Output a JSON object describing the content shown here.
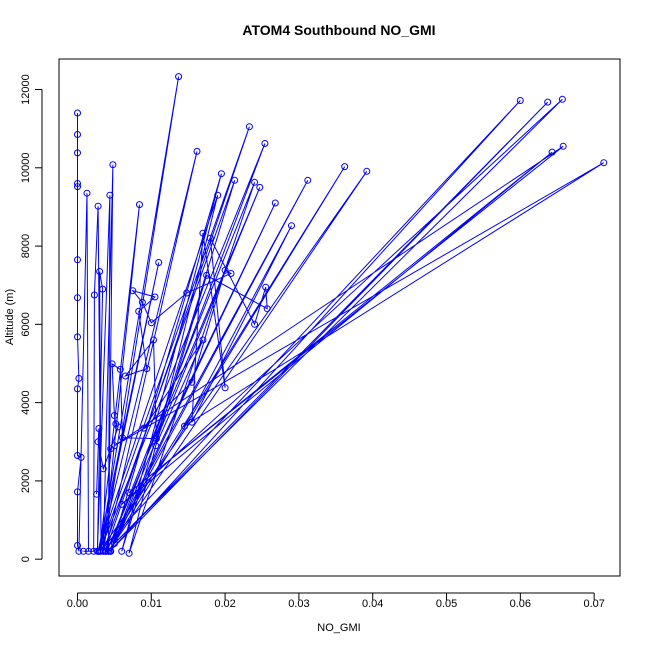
{
  "chart_data": {
    "type": "line",
    "title": "ATOM4 Southbound NO_GMI",
    "xlabel": "NO_GMI",
    "ylabel": "Altitude (m)",
    "xlim": [
      -0.0025,
      0.0735
    ],
    "ylim": [
      -430,
      12780
    ],
    "xticks": [
      0.0,
      0.01,
      0.02,
      0.03,
      0.04,
      0.05,
      0.06,
      0.07
    ],
    "xtick_labels": [
      "0.00",
      "0.01",
      "0.02",
      "0.03",
      "0.04",
      "0.05",
      "0.06",
      "0.07"
    ],
    "yticks": [
      0,
      2000,
      4000,
      6000,
      8000,
      10000,
      12000
    ],
    "ytick_labels": [
      "0",
      "2000",
      "4000",
      "6000",
      "8000",
      "10000",
      "12000"
    ],
    "grid": false,
    "legend": "none",
    "style": "lines and open circles",
    "color": "#0000ff",
    "series": [
      {
        "points": [
          [
            0.0,
            11400
          ],
          [
            0.0,
            10850
          ],
          [
            0.0,
            10380
          ],
          [
            0.0,
            9600
          ],
          [
            0.0,
            9520
          ],
          [
            0.0,
            7650
          ],
          [
            0.0,
            6680
          ],
          [
            0.0,
            5680
          ],
          [
            0.0002,
            4620
          ],
          [
            0.0,
            4350
          ],
          [
            0.0,
            2650
          ],
          [
            0.0005,
            2600
          ],
          [
            0.0,
            1720
          ],
          [
            0.0,
            350
          ],
          [
            0.0002,
            200
          ],
          [
            0.0013,
            9350
          ],
          [
            0.0015,
            200
          ],
          [
            0.0008,
            200
          ],
          [
            0.0022,
            200
          ],
          [
            0.0023,
            6750
          ],
          [
            0.0028,
            9020
          ],
          [
            0.0032,
            200
          ],
          [
            0.003,
            7350
          ],
          [
            0.0034,
            6900
          ],
          [
            0.0027,
            200
          ],
          [
            0.0044,
            9300
          ],
          [
            0.0042,
            200
          ],
          [
            0.0048,
            10080
          ],
          [
            0.0035,
            200
          ],
          [
            0.0137,
            12330
          ],
          [
            0.003,
            200
          ],
          [
            0.0162,
            10420
          ],
          [
            0.0038,
            200
          ],
          [
            0.0233,
            11050
          ],
          [
            0.003,
            200
          ],
          [
            0.0254,
            10620
          ],
          [
            0.0045,
            200
          ],
          [
            0.0195,
            9850
          ],
          [
            0.006,
            200
          ],
          [
            0.0213,
            9680
          ],
          [
            0.0035,
            200
          ],
          [
            0.0084,
            9060
          ],
          [
            0.003,
            200
          ],
          [
            0.011,
            7580
          ],
          [
            0.0028,
            200
          ],
          [
            0.019,
            9300
          ],
          [
            0.007,
            150
          ],
          [
            0.024,
            9630
          ],
          [
            0.004,
            200
          ],
          [
            0.0247,
            9500
          ],
          [
            0.0045,
            200
          ],
          [
            0.0268,
            9100
          ],
          [
            0.005,
            500
          ],
          [
            0.0312,
            9680
          ],
          [
            0.0038,
            200
          ],
          [
            0.0362,
            10030
          ],
          [
            0.0042,
            200
          ],
          [
            0.0392,
            9910
          ],
          [
            0.003,
            200
          ],
          [
            0.06,
            11720
          ],
          [
            0.0044,
            200
          ],
          [
            0.0637,
            11680
          ],
          [
            0.005,
            400
          ],
          [
            0.0657,
            11750
          ],
          [
            0.006,
            1400
          ],
          [
            0.0643,
            10400
          ],
          [
            0.007,
            1700
          ],
          [
            0.0658,
            10550
          ],
          [
            0.005,
            2900
          ],
          [
            0.0713,
            10130
          ],
          [
            0.0145,
            3400
          ],
          [
            0.029,
            8520
          ],
          [
            0.0155,
            3500
          ],
          [
            0.017,
            8330
          ],
          [
            0.02,
            4380
          ],
          [
            0.018,
            8200
          ],
          [
            0.024,
            6000
          ],
          [
            0.0255,
            6950
          ],
          [
            0.0257,
            6400
          ],
          [
            0.0175,
            7250
          ],
          [
            0.0106,
            2900
          ],
          [
            0.017,
            5600
          ],
          [
            0.009,
            3350
          ],
          [
            0.0155,
            4520
          ],
          [
            0.02,
            7380
          ],
          [
            0.0208,
            7300
          ],
          [
            0.0148,
            6800
          ],
          [
            0.01,
            6040
          ],
          [
            0.0088,
            6560
          ],
          [
            0.0075,
            6860
          ],
          [
            0.0105,
            6700
          ],
          [
            0.0083,
            6330
          ],
          [
            0.0094,
            4870
          ],
          [
            0.0065,
            4680
          ],
          [
            0.0103,
            5600
          ],
          [
            0.0107,
            3080
          ],
          [
            0.0061,
            3100
          ],
          [
            0.0058,
            4850
          ],
          [
            0.0047,
            4990
          ],
          [
            0.005,
            3670
          ],
          [
            0.0052,
            3460
          ],
          [
            0.0055,
            3380
          ],
          [
            0.0045,
            2820
          ],
          [
            0.0035,
            2310
          ],
          [
            0.0028,
            3000
          ],
          [
            0.0029,
            3340
          ],
          [
            0.0026,
            1660
          ]
        ]
      }
    ]
  }
}
